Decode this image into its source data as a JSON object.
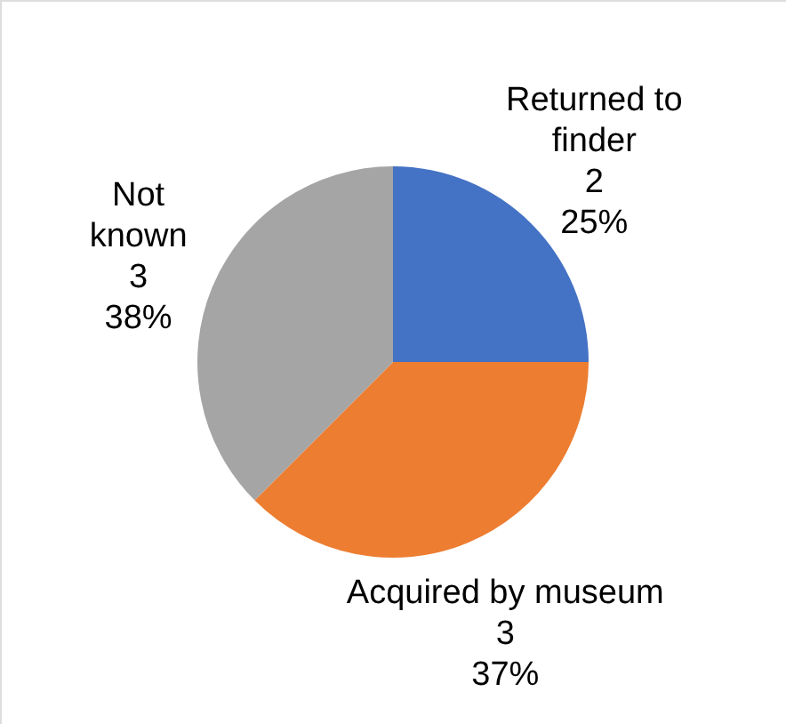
{
  "chart_data": {
    "type": "pie",
    "categories": [
      "Returned to finder",
      "Acquired by museum",
      "Not known"
    ],
    "values": [
      2,
      3,
      3
    ],
    "colors": [
      "#4472c4",
      "#ed7d31",
      "#a5a5a5"
    ],
    "value_labels": [
      "2\n25%",
      "3\n37%",
      "3\n38%"
    ],
    "legend": false
  }
}
